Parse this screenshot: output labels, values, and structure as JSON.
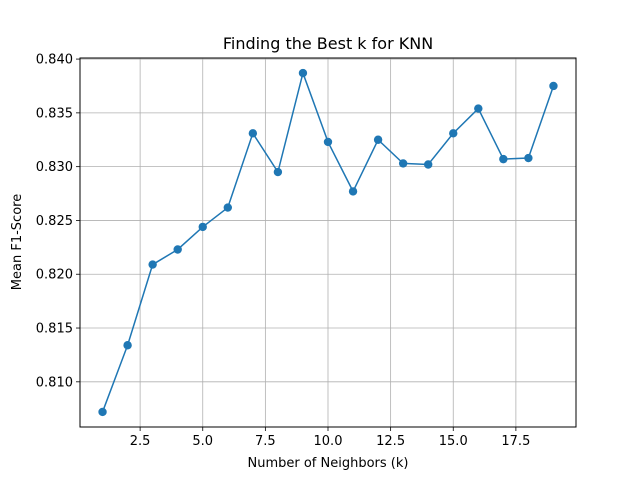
{
  "chart_data": {
    "type": "line",
    "title": "Finding the Best k for KNN",
    "xlabel": "Number of Neighbors (k)",
    "ylabel": "Mean F1-Score",
    "x": [
      1,
      2,
      3,
      4,
      5,
      6,
      7,
      8,
      9,
      10,
      11,
      12,
      13,
      14,
      15,
      16,
      17,
      18,
      19
    ],
    "series": [
      {
        "values": [
          0.8072,
          0.8134,
          0.8209,
          0.8223,
          0.8244,
          0.8262,
          0.8331,
          0.8295,
          0.8387,
          0.8323,
          0.8277,
          0.8325,
          0.8303,
          0.8302,
          0.8331,
          0.8354,
          0.8307,
          0.8308,
          0.8375
        ],
        "color": "#1f77b4",
        "marker": "circle"
      }
    ],
    "xlim": [
      0.1,
      19.9
    ],
    "ylim": [
      0.8058,
      0.8401
    ],
    "xticks": [
      "2.5",
      "5.0",
      "7.5",
      "10.0",
      "12.5",
      "15.0",
      "17.5"
    ],
    "xtick_values": [
      2.5,
      5.0,
      7.5,
      10.0,
      12.5,
      15.0,
      17.5
    ],
    "yticks": [
      "0.810",
      "0.815",
      "0.820",
      "0.825",
      "0.830",
      "0.835",
      "0.840"
    ],
    "ytick_values": [
      0.81,
      0.815,
      0.82,
      0.825,
      0.83,
      0.835,
      0.84
    ],
    "grid": true
  }
}
